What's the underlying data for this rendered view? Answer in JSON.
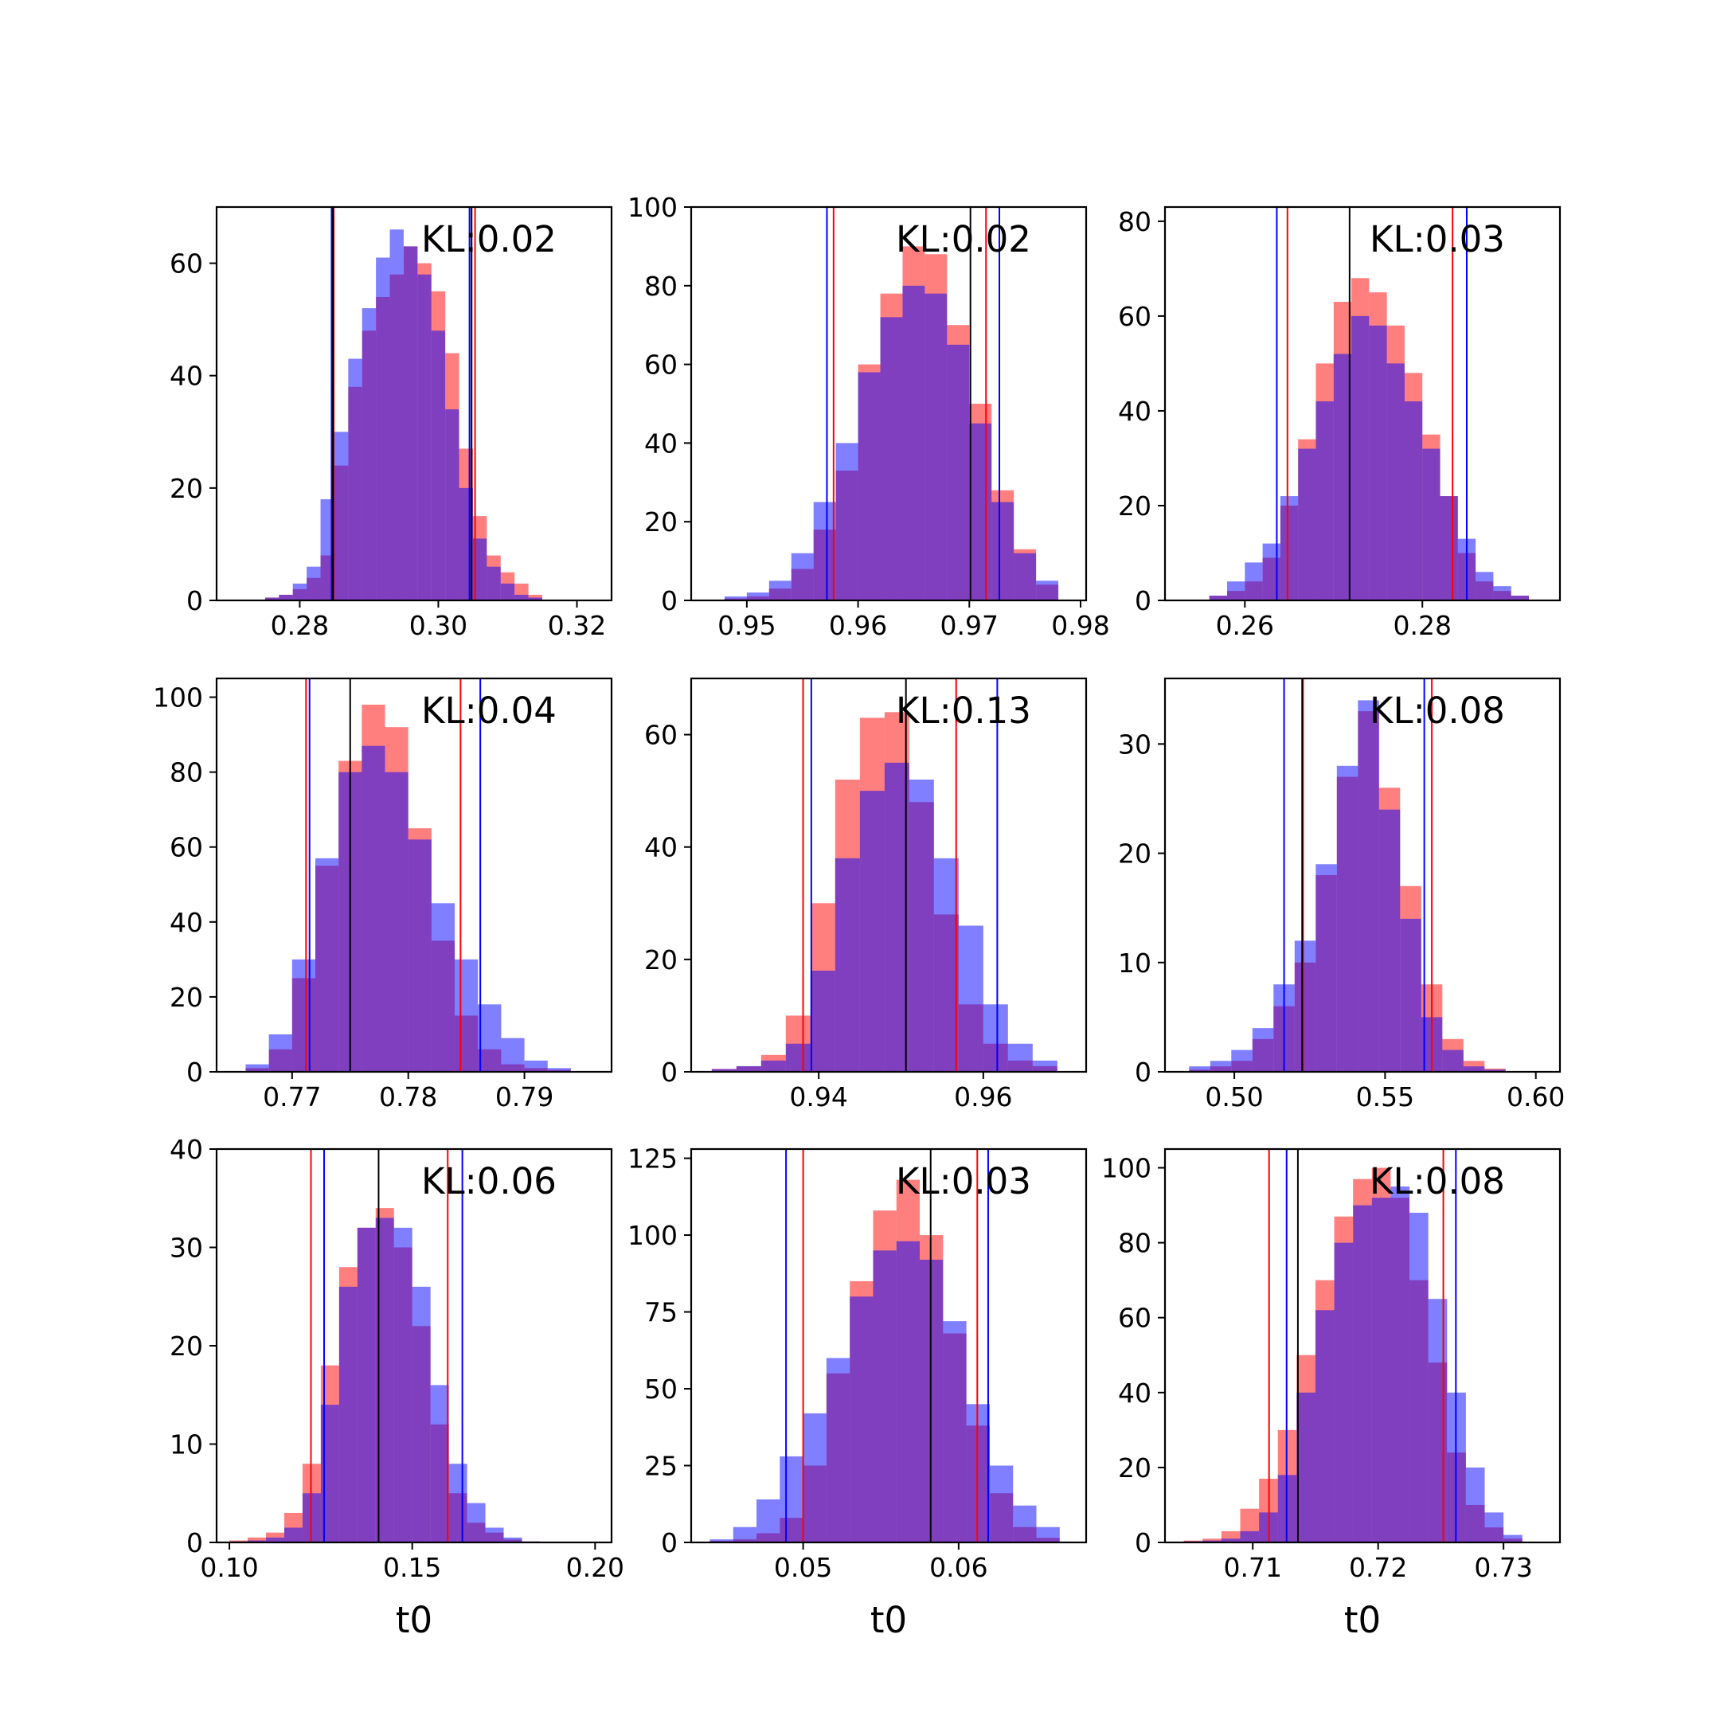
{
  "chart_data": [
    {
      "type": "histogram",
      "annotation": "KL:0.02",
      "xlabel": "",
      "xlim": [
        0.268,
        0.325
      ],
      "ylim": [
        0,
        70
      ],
      "xticks": [
        "0.28",
        "0.30",
        "0.32"
      ],
      "yticks": [
        "0",
        "20",
        "40",
        "60"
      ],
      "bin_edges": [
        0.275,
        0.277,
        0.279,
        0.281,
        0.283,
        0.285,
        0.287,
        0.289,
        0.291,
        0.293,
        0.295,
        0.297,
        0.299,
        0.301,
        0.303,
        0.305,
        0.307,
        0.309,
        0.311,
        0.313,
        0.315
      ],
      "series": [
        {
          "color": "#ff0000",
          "values": [
            0.5,
            1,
            2,
            4,
            8,
            24,
            38,
            48,
            54,
            58,
            63,
            60,
            55,
            44,
            27,
            15,
            8,
            5,
            3,
            1
          ]
        },
        {
          "color": "#0000ff",
          "values": [
            0.5,
            1,
            3,
            6,
            18,
            30,
            43,
            52,
            61,
            66,
            63,
            58,
            48,
            34,
            20,
            11,
            6,
            3,
            1,
            0.5
          ]
        }
      ],
      "vlines": [
        {
          "color": "#ff0000",
          "x": 0.2849
        },
        {
          "color": "#ff0000",
          "x": 0.3053
        },
        {
          "color": "#0000ff",
          "x": 0.2846
        },
        {
          "color": "#0000ff",
          "x": 0.3045
        },
        {
          "color": "#000000",
          "x": 0.2848
        },
        {
          "color": "#000000",
          "x": 0.3048
        }
      ]
    },
    {
      "type": "histogram",
      "annotation": "KL:0.02",
      "xlabel": "",
      "xlim": [
        0.945,
        0.9805
      ],
      "ylim": [
        0,
        100
      ],
      "xticks": [
        "0.95",
        "0.96",
        "0.97",
        "0.98"
      ],
      "yticks": [
        "0",
        "20",
        "40",
        "60",
        "80",
        "100"
      ],
      "bin_edges": [
        0.948,
        0.95,
        0.952,
        0.954,
        0.956,
        0.958,
        0.96,
        0.962,
        0.964,
        0.966,
        0.968,
        0.97,
        0.972,
        0.974,
        0.976,
        0.978
      ],
      "series": [
        {
          "color": "#ff0000",
          "values": [
            0.5,
            1,
            3,
            8,
            18,
            33,
            60,
            78,
            90,
            88,
            70,
            50,
            28,
            13,
            4
          ]
        },
        {
          "color": "#0000ff",
          "values": [
            1,
            2,
            5,
            12,
            25,
            40,
            58,
            72,
            80,
            78,
            65,
            45,
            25,
            12,
            5
          ]
        }
      ],
      "vlines": [
        {
          "color": "#ff0000",
          "x": 0.9578
        },
        {
          "color": "#ff0000",
          "x": 0.9715
        },
        {
          "color": "#0000ff",
          "x": 0.9572
        },
        {
          "color": "#0000ff",
          "x": 0.9727
        },
        {
          "color": "#000000",
          "x": 0.9701
        }
      ]
    },
    {
      "type": "histogram",
      "annotation": "KL:0.03",
      "xlabel": "",
      "xlim": [
        0.251,
        0.2955
      ],
      "ylim": [
        0,
        83
      ],
      "xticks": [
        "0.26",
        "0.28"
      ],
      "yticks": [
        "0",
        "20",
        "40",
        "60",
        "80"
      ],
      "bin_edges": [
        0.256,
        0.258,
        0.26,
        0.262,
        0.264,
        0.266,
        0.268,
        0.27,
        0.272,
        0.274,
        0.276,
        0.278,
        0.28,
        0.282,
        0.284,
        0.286,
        0.288,
        0.29,
        0.292
      ],
      "series": [
        {
          "color": "#ff0000",
          "values": [
            1,
            2,
            4,
            9,
            20,
            34,
            50,
            63,
            68,
            65,
            58,
            48,
            35,
            22,
            10,
            4,
            2,
            1
          ]
        },
        {
          "color": "#0000ff",
          "values": [
            1,
            4,
            8,
            12,
            22,
            32,
            42,
            52,
            60,
            58,
            50,
            42,
            32,
            22,
            13,
            6,
            3,
            1
          ]
        }
      ],
      "vlines": [
        {
          "color": "#ff0000",
          "x": 0.2648
        },
        {
          "color": "#ff0000",
          "x": 0.2834
        },
        {
          "color": "#0000ff",
          "x": 0.2636
        },
        {
          "color": "#0000ff",
          "x": 0.285
        },
        {
          "color": "#000000",
          "x": 0.2718
        }
      ]
    },
    {
      "type": "histogram",
      "annotation": "KL:0.04",
      "xlabel": "",
      "xlim": [
        0.7635,
        0.7975
      ],
      "ylim": [
        0,
        105
      ],
      "xticks": [
        "0.77",
        "0.78",
        "0.79"
      ],
      "yticks": [
        "0",
        "20",
        "40",
        "60",
        "80",
        "100"
      ],
      "bin_edges": [
        0.766,
        0.768,
        0.77,
        0.772,
        0.774,
        0.776,
        0.778,
        0.78,
        0.782,
        0.784,
        0.786,
        0.788,
        0.79,
        0.792,
        0.794
      ],
      "series": [
        {
          "color": "#ff0000",
          "values": [
            1,
            6,
            25,
            55,
            83,
            98,
            92,
            65,
            35,
            15,
            6,
            2,
            1,
            0.5
          ]
        },
        {
          "color": "#0000ff",
          "values": [
            2,
            10,
            30,
            57,
            80,
            87,
            80,
            62,
            45,
            30,
            18,
            9,
            3,
            1
          ]
        }
      ],
      "vlines": [
        {
          "color": "#ff0000",
          "x": 0.7712
        },
        {
          "color": "#ff0000",
          "x": 0.7845
        },
        {
          "color": "#0000ff",
          "x": 0.7715
        },
        {
          "color": "#0000ff",
          "x": 0.7862
        },
        {
          "color": "#000000",
          "x": 0.775
        }
      ]
    },
    {
      "type": "histogram",
      "annotation": "KL:0.13",
      "xlabel": "",
      "xlim": [
        0.9245,
        0.9725
      ],
      "ylim": [
        0,
        70
      ],
      "xticks": [
        "0.94",
        "0.96"
      ],
      "yticks": [
        "0",
        "20",
        "40",
        "60"
      ],
      "bin_edges": [
        0.927,
        0.93,
        0.933,
        0.936,
        0.939,
        0.942,
        0.945,
        0.948,
        0.951,
        0.954,
        0.957,
        0.96,
        0.963,
        0.966,
        0.969
      ],
      "series": [
        {
          "color": "#ff0000",
          "values": [
            0.5,
            1,
            3,
            10,
            30,
            52,
            63,
            64,
            48,
            28,
            12,
            5,
            2,
            1
          ]
        },
        {
          "color": "#0000ff",
          "values": [
            0.5,
            1,
            2,
            5,
            18,
            38,
            50,
            55,
            52,
            38,
            26,
            12,
            5,
            2
          ]
        }
      ],
      "vlines": [
        {
          "color": "#ff0000",
          "x": 0.9381
        },
        {
          "color": "#ff0000",
          "x": 0.9567
        },
        {
          "color": "#0000ff",
          "x": 0.9391
        },
        {
          "color": "#0000ff",
          "x": 0.9617
        },
        {
          "color": "#000000",
          "x": 0.9506
        }
      ]
    },
    {
      "type": "histogram",
      "annotation": "KL:0.08",
      "xlabel": "",
      "xlim": [
        0.477,
        0.608
      ],
      "ylim": [
        0,
        36
      ],
      "xticks": [
        "0.50",
        "0.55",
        "0.60"
      ],
      "yticks": [
        "0",
        "10",
        "20",
        "30"
      ],
      "bin_edges": [
        0.485,
        0.492,
        0.499,
        0.506,
        0.513,
        0.52,
        0.527,
        0.534,
        0.541,
        0.548,
        0.555,
        0.562,
        0.569,
        0.576,
        0.583,
        0.59
      ],
      "series": [
        {
          "color": "#ff0000",
          "values": [
            0.2,
            0.5,
            1,
            3,
            6,
            10,
            18,
            27,
            33,
            26,
            17,
            8,
            3,
            1,
            0.3
          ]
        },
        {
          "color": "#0000ff",
          "values": [
            0.5,
            1,
            2,
            4,
            8,
            12,
            19,
            28,
            34,
            24,
            14,
            5,
            2,
            0.5,
            0.2
          ]
        }
      ],
      "vlines": [
        {
          "color": "#ff0000",
          "x": 0.5228
        },
        {
          "color": "#ff0000",
          "x": 0.5655
        },
        {
          "color": "#0000ff",
          "x": 0.5165
        },
        {
          "color": "#0000ff",
          "x": 0.563
        },
        {
          "color": "#000000",
          "x": 0.5225
        }
      ]
    },
    {
      "type": "histogram",
      "annotation": "KL:0.06",
      "xlabel": "t0",
      "xlim": [
        0.0965,
        0.2045
      ],
      "ylim": [
        0,
        40
      ],
      "xticks": [
        "0.10",
        "0.15",
        "0.20"
      ],
      "yticks": [
        "0",
        "10",
        "20",
        "30",
        "40"
      ],
      "bin_edges": [
        0.1,
        0.105,
        0.11,
        0.115,
        0.12,
        0.125,
        0.13,
        0.135,
        0.14,
        0.145,
        0.15,
        0.155,
        0.16,
        0.165,
        0.17,
        0.175,
        0.18,
        0.185
      ],
      "series": [
        {
          "color": "#ff0000",
          "values": [
            0.2,
            0.5,
            1,
            3,
            8,
            18,
            28,
            32,
            34,
            30,
            22,
            12,
            5,
            2,
            1,
            0.3,
            0.1
          ]
        },
        {
          "color": "#0000ff",
          "values": [
            0.1,
            0.2,
            0.5,
            1.5,
            5,
            14,
            26,
            32,
            33,
            32,
            26,
            16,
            8,
            4,
            1.5,
            0.5,
            0.1
          ]
        }
      ],
      "vlines": [
        {
          "color": "#ff0000",
          "x": 0.1223
        },
        {
          "color": "#ff0000",
          "x": 0.1597
        },
        {
          "color": "#0000ff",
          "x": 0.1259
        },
        {
          "color": "#0000ff",
          "x": 0.1637
        },
        {
          "color": "#000000",
          "x": 0.1408
        }
      ]
    },
    {
      "type": "histogram",
      "annotation": "KL:0.03",
      "xlabel": "t0",
      "xlim": [
        0.0428,
        0.0682
      ],
      "ylim": [
        0,
        128
      ],
      "xticks": [
        "0.05",
        "0.06"
      ],
      "yticks": [
        "0",
        "25",
        "50",
        "75",
        "100",
        "125"
      ],
      "bin_edges": [
        0.044,
        0.0455,
        0.047,
        0.0485,
        0.05,
        0.0515,
        0.053,
        0.0545,
        0.056,
        0.0575,
        0.059,
        0.0605,
        0.062,
        0.0635,
        0.065,
        0.0665
      ],
      "series": [
        {
          "color": "#ff0000",
          "values": [
            0.5,
            1,
            3,
            8,
            25,
            55,
            85,
            108,
            118,
            100,
            68,
            38,
            16,
            5,
            1.5
          ]
        },
        {
          "color": "#0000ff",
          "values": [
            1,
            5,
            14,
            28,
            42,
            60,
            80,
            95,
            98,
            92,
            72,
            45,
            25,
            12,
            5
          ]
        }
      ],
      "vlines": [
        {
          "color": "#ff0000",
          "x": 0.05
        },
        {
          "color": "#ff0000",
          "x": 0.0612
        },
        {
          "color": "#0000ff",
          "x": 0.0489
        },
        {
          "color": "#0000ff",
          "x": 0.0619
        },
        {
          "color": "#000000",
          "x": 0.0582
        }
      ]
    },
    {
      "type": "histogram",
      "annotation": "KL:0.08",
      "xlabel": "t0",
      "xlim": [
        0.703,
        0.7345
      ],
      "ylim": [
        0,
        105
      ],
      "xticks": [
        "0.71",
        "0.72",
        "0.73"
      ],
      "yticks": [
        "0",
        "20",
        "40",
        "60",
        "80",
        "100"
      ],
      "bin_edges": [
        0.7045,
        0.706,
        0.7075,
        0.709,
        0.7105,
        0.712,
        0.7135,
        0.715,
        0.7165,
        0.718,
        0.7195,
        0.721,
        0.7225,
        0.724,
        0.7255,
        0.727,
        0.7285,
        0.73,
        0.7315
      ],
      "series": [
        {
          "color": "#ff0000",
          "values": [
            0.5,
            1,
            3,
            9,
            17,
            30,
            50,
            70,
            87,
            97,
            100,
            92,
            70,
            48,
            24,
            10,
            4,
            1
          ]
        },
        {
          "color": "#0000ff",
          "values": [
            0.3,
            0.5,
            1,
            3,
            8,
            18,
            40,
            62,
            80,
            90,
            92,
            95,
            88,
            65,
            40,
            20,
            8,
            2
          ]
        }
      ],
      "vlines": [
        {
          "color": "#ff0000",
          "x": 0.7113
        },
        {
          "color": "#ff0000",
          "x": 0.7252
        },
        {
          "color": "#0000ff",
          "x": 0.7127
        },
        {
          "color": "#0000ff",
          "x": 0.7262
        },
        {
          "color": "#000000",
          "x": 0.7136
        }
      ]
    }
  ]
}
